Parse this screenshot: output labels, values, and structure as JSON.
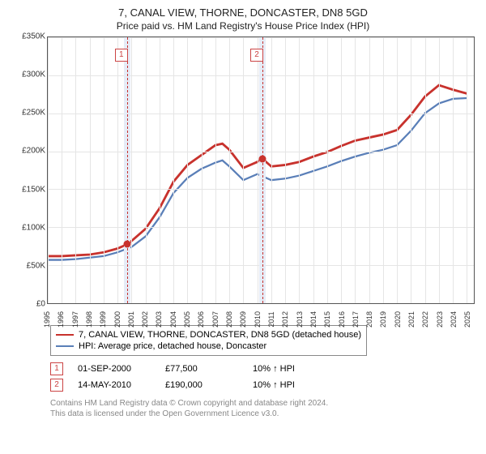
{
  "title": "7, CANAL VIEW, THORNE, DONCASTER, DN8 5GD",
  "subtitle": "Price paid vs. HM Land Registry's House Price Index (HPI)",
  "chart": {
    "type": "line",
    "xlim": [
      1995,
      2025.5
    ],
    "ylim": [
      0,
      350000
    ],
    "ytick_step": 50000,
    "ylabels": [
      "£0",
      "£50K",
      "£100K",
      "£150K",
      "£200K",
      "£250K",
      "£300K",
      "£350K"
    ],
    "xticks": [
      1995,
      1996,
      1997,
      1998,
      1999,
      2000,
      2001,
      2002,
      2003,
      2004,
      2005,
      2006,
      2007,
      2008,
      2009,
      2010,
      2011,
      2012,
      2013,
      2014,
      2015,
      2016,
      2017,
      2018,
      2019,
      2020,
      2021,
      2022,
      2023,
      2024,
      2025
    ],
    "grid_color": "#e5e5e5",
    "background_color": "#ffffff",
    "border_color": "#555555",
    "label_fontsize": 10,
    "series": [
      {
        "key": "subject",
        "label": "7, CANAL VIEW, THORNE, DONCASTER, DN8 5GD (detached house)",
        "color": "#c8322d",
        "line_width": 1.5,
        "data": [
          [
            1995,
            62000
          ],
          [
            1996,
            62000
          ],
          [
            1997,
            63000
          ],
          [
            1998,
            64000
          ],
          [
            1999,
            67000
          ],
          [
            2000,
            72000
          ],
          [
            2000.67,
            77500
          ],
          [
            2001,
            82000
          ],
          [
            2002,
            98000
          ],
          [
            2003,
            125000
          ],
          [
            2004,
            160000
          ],
          [
            2005,
            182000
          ],
          [
            2006,
            195000
          ],
          [
            2007,
            208000
          ],
          [
            2007.5,
            210000
          ],
          [
            2008,
            202000
          ],
          [
            2009,
            178000
          ],
          [
            2010,
            186000
          ],
          [
            2010.37,
            190000
          ],
          [
            2011,
            180000
          ],
          [
            2012,
            182000
          ],
          [
            2013,
            186000
          ],
          [
            2014,
            193000
          ],
          [
            2015,
            199000
          ],
          [
            2016,
            207000
          ],
          [
            2017,
            214000
          ],
          [
            2018,
            218000
          ],
          [
            2019,
            222000
          ],
          [
            2020,
            228000
          ],
          [
            2021,
            248000
          ],
          [
            2022,
            272000
          ],
          [
            2023,
            287000
          ],
          [
            2024,
            281000
          ],
          [
            2025,
            276000
          ]
        ]
      },
      {
        "key": "hpi",
        "label": "HPI: Average price, detached house, Doncaster",
        "color": "#5a7fb8",
        "line_width": 1.2,
        "data": [
          [
            1995,
            57000
          ],
          [
            1996,
            57000
          ],
          [
            1997,
            58000
          ],
          [
            1998,
            60000
          ],
          [
            1999,
            62000
          ],
          [
            2000,
            67000
          ],
          [
            2001,
            74000
          ],
          [
            2002,
            88000
          ],
          [
            2003,
            113000
          ],
          [
            2004,
            145000
          ],
          [
            2005,
            165000
          ],
          [
            2006,
            177000
          ],
          [
            2007,
            185000
          ],
          [
            2007.5,
            188000
          ],
          [
            2008,
            180000
          ],
          [
            2009,
            162000
          ],
          [
            2010,
            170000
          ],
          [
            2011,
            162000
          ],
          [
            2012,
            164000
          ],
          [
            2013,
            168000
          ],
          [
            2014,
            174000
          ],
          [
            2015,
            180000
          ],
          [
            2016,
            187000
          ],
          [
            2017,
            193000
          ],
          [
            2018,
            198000
          ],
          [
            2019,
            202000
          ],
          [
            2020,
            208000
          ],
          [
            2021,
            227000
          ],
          [
            2022,
            250000
          ],
          [
            2023,
            263000
          ],
          [
            2024,
            269000
          ],
          [
            2025,
            270000
          ]
        ]
      }
    ],
    "markers": [
      {
        "id": "1",
        "x": 2000.67,
        "y": 77500,
        "color": "#c8322d",
        "band_color": "#e6ecf7"
      },
      {
        "id": "2",
        "x": 2010.37,
        "y": 190000,
        "color": "#c8322d",
        "band_color": "#e6ecf7"
      }
    ]
  },
  "transactions": [
    {
      "id": "1",
      "date": "01-SEP-2000",
      "price": "£77,500",
      "delta": "10% ↑ HPI"
    },
    {
      "id": "2",
      "date": "14-MAY-2010",
      "price": "£190,000",
      "delta": "10% ↑ HPI"
    }
  ],
  "attribution": {
    "line1": "Contains HM Land Registry data © Crown copyright and database right 2024.",
    "line2": "This data is licensed under the Open Government Licence v3.0."
  }
}
